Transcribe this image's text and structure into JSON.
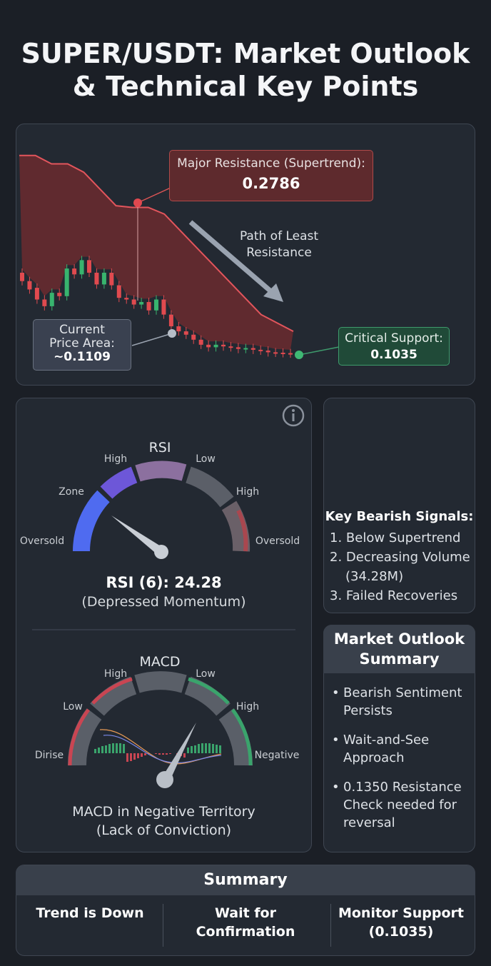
{
  "title_line1": "SUPER/USDT: Market Outlook",
  "title_line2": "& Technical Key Points",
  "chart_data": {
    "type": "candlestick",
    "title": "",
    "annotations": {
      "resistance_label": "Major Resistance (Supertrend):",
      "resistance_value": "0.2786",
      "path_label_line1": "Path of Least",
      "path_label_line2": "Resistance",
      "current_line1": "Current",
      "current_line2": "Price Area:",
      "current_value": "~0.1109",
      "support_label": "Critical Support:",
      "support_value": "0.1035"
    },
    "supertrend_band": [
      0.34,
      0.34,
      0.33,
      0.33,
      0.32,
      0.3,
      0.28,
      0.278,
      0.278,
      0.27,
      0.25,
      0.23,
      0.21,
      0.19,
      0.17,
      0.15,
      0.14,
      0.13
    ],
    "candles": [
      {
        "o": 0.2,
        "c": 0.19
      },
      {
        "o": 0.19,
        "c": 0.18
      },
      {
        "o": 0.182,
        "c": 0.168
      },
      {
        "o": 0.168,
        "c": 0.16
      },
      {
        "o": 0.16,
        "c": 0.176
      },
      {
        "o": 0.176,
        "c": 0.172
      },
      {
        "o": 0.172,
        "c": 0.205
      },
      {
        "o": 0.205,
        "c": 0.198
      },
      {
        "o": 0.198,
        "c": 0.215
      },
      {
        "o": 0.215,
        "c": 0.2
      },
      {
        "o": 0.2,
        "c": 0.186
      },
      {
        "o": 0.186,
        "c": 0.2
      },
      {
        "o": 0.2,
        "c": 0.185
      },
      {
        "o": 0.185,
        "c": 0.17
      },
      {
        "o": 0.17,
        "c": 0.168
      },
      {
        "o": 0.168,
        "c": 0.162
      },
      {
        "o": 0.162,
        "c": 0.165
      },
      {
        "o": 0.165,
        "c": 0.155
      },
      {
        "o": 0.155,
        "c": 0.168
      },
      {
        "o": 0.168,
        "c": 0.15
      },
      {
        "o": 0.15,
        "c": 0.136
      },
      {
        "o": 0.136,
        "c": 0.13
      },
      {
        "o": 0.13,
        "c": 0.126
      },
      {
        "o": 0.126,
        "c": 0.12
      },
      {
        "o": 0.12,
        "c": 0.114
      },
      {
        "o": 0.114,
        "c": 0.111
      },
      {
        "o": 0.111,
        "c": 0.114
      },
      {
        "o": 0.114,
        "c": 0.112
      },
      {
        "o": 0.112,
        "c": 0.111
      },
      {
        "o": 0.111,
        "c": 0.109
      },
      {
        "o": 0.109,
        "c": 0.11
      },
      {
        "o": 0.11,
        "c": 0.108
      },
      {
        "o": 0.108,
        "c": 0.107
      },
      {
        "o": 0.107,
        "c": 0.105
      },
      {
        "o": 0.105,
        "c": 0.1045
      },
      {
        "o": 0.1045,
        "c": 0.104
      },
      {
        "o": 0.104,
        "c": 0.1035
      }
    ]
  },
  "rsi": {
    "title": "RSI",
    "labels": {
      "oversold_left": "Oversold",
      "zone": "Zone",
      "high_left": "High",
      "low": "Low",
      "high_right": "High",
      "oversold_right": "Oversold"
    },
    "value": 24.28,
    "main": "RSI (6): 24.28",
    "sub": "(Depressed Momentum)",
    "colors": {
      "zone": "#4e63e6",
      "high": "#7a55c8",
      "mid": "#8b6fa0",
      "neutral": "#5d616a",
      "right": "#b24b57"
    }
  },
  "macd": {
    "title": "MACD",
    "labels": {
      "dirise": "Dirise",
      "low_left": "Low",
      "high_left": "High",
      "low_right": "Low",
      "high_right": "High",
      "negative": "Negative"
    },
    "line1": "MACD in Negative Territory",
    "line2": "(Lack of Conviction)"
  },
  "signals": {
    "title": "Key Bearish Signals:",
    "items": [
      "1. Below Supertrend",
      "2. Decreasing Volume",
      "(34.28M)",
      "3. Failed Recoveries"
    ]
  },
  "outlook": {
    "title_line1": "Market Outlook",
    "title_line2": "Summary",
    "items": [
      "Bearish Sentiment Persists",
      "Wait-and-See Approach",
      "0.1350 Resistance Check needed for reversal"
    ]
  },
  "summary": {
    "title": "Summary",
    "col1": "Trend is Down",
    "col2": "Wait for Confirmation",
    "col3_line1": "Monitor Support",
    "col3_line2": "(0.1035)"
  },
  "colors": {
    "bg": "#1b1f26",
    "card": "#232932",
    "bear": "#e04a4f",
    "bull": "#38b46e",
    "band": "#6b2a2f"
  }
}
